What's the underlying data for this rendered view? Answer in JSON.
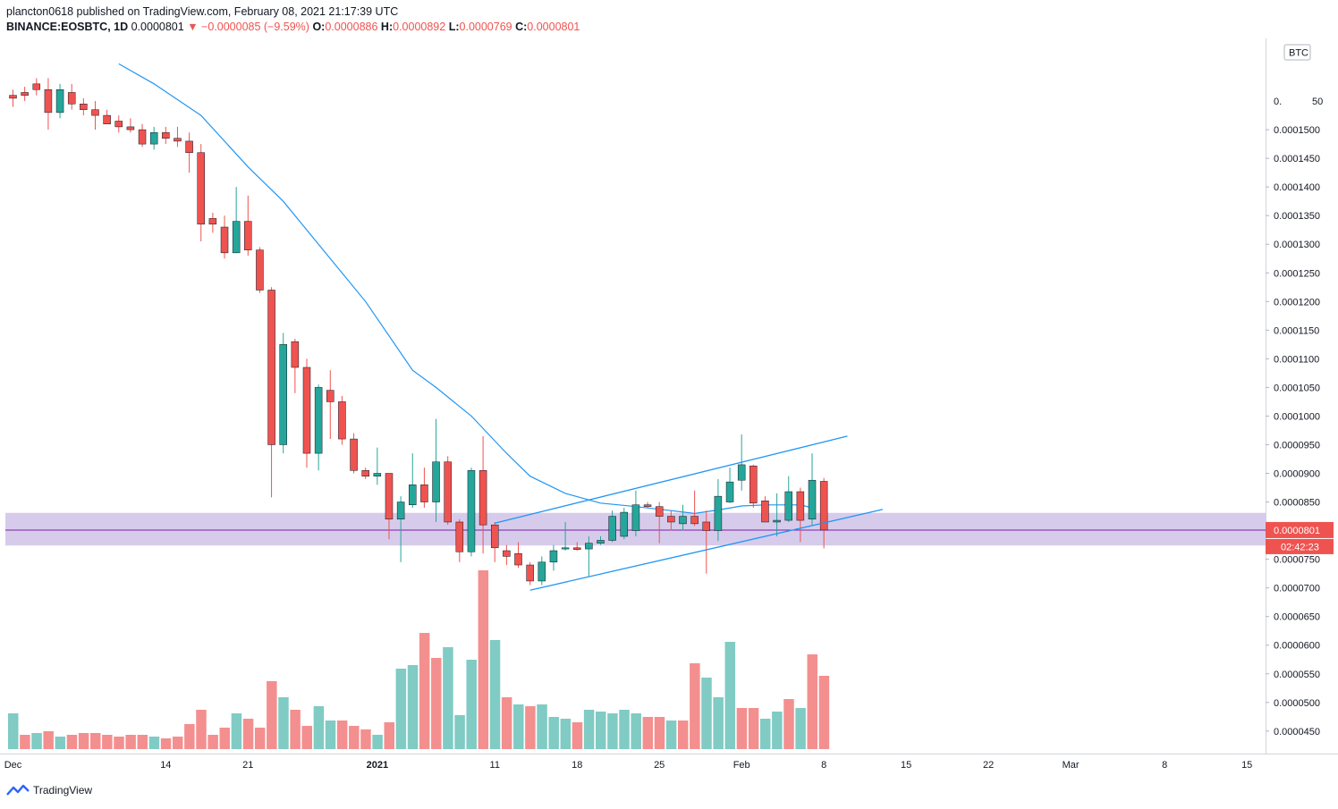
{
  "header": {
    "line1": "plancton0618 published on TradingView.com, February 08, 2021 21:17:39 UTC",
    "symbol": "BINANCE:EOSBTC, 1D",
    "last": "0.0000801",
    "change": "▼ −0.0000085 (−9.59%)",
    "o_label": "O:",
    "o": "0.0000886",
    "h_label": "H:",
    "h": "0.0000892",
    "l_label": "L:",
    "l": "0.0000769",
    "c_label": "C:",
    "c": "0.0000801"
  },
  "footer": {
    "brand": "TradingView",
    "brand_icon": "tradingview-logo-icon"
  },
  "colors": {
    "up": "#26a69a",
    "down": "#ef5350",
    "ma": "#2196f3",
    "zone": "#9575cd",
    "price_line": "#7b1fa2",
    "vol_up": "#80cbc4",
    "vol_down": "#f48f8f"
  },
  "chart_data": {
    "type": "candlestick",
    "currency_badge": "BTC",
    "price_label": "0.0000801",
    "countdown_label": "02:42:23",
    "y_ticks": [
      "0.0001500",
      "0.0001450",
      "0.0001400",
      "0.0001350",
      "0.0001300",
      "0.0001250",
      "0.0001200",
      "0.0001150",
      "0.0001100",
      "0.0001050",
      "0.0001000",
      "0.0000950",
      "0.0000900",
      "0.0000850",
      "0.0000750",
      "0.0000700",
      "0.0000650",
      "0.0000600",
      "0.0000550",
      "0.0000500",
      "0.0000450"
    ],
    "y_top_partial": "0.",
    "y_top_partial_end": "50",
    "ylim": [
      4.31e-05,
      0.0001586
    ],
    "x_ticks": [
      {
        "label": "Dec",
        "d": 0
      },
      {
        "label": "14",
        "d": 13
      },
      {
        "label": "21",
        "d": 20
      },
      {
        "label": "2021",
        "d": 31
      },
      {
        "label": "11",
        "d": 41
      },
      {
        "label": "18",
        "d": 48
      },
      {
        "label": "25",
        "d": 55
      },
      {
        "label": "Feb",
        "d": 62
      },
      {
        "label": "8",
        "d": 69
      },
      {
        "label": "15",
        "d": 76
      },
      {
        "label": "22",
        "d": 83
      },
      {
        "label": "Mar",
        "d": 90
      },
      {
        "label": "8",
        "d": 98
      },
      {
        "label": "15",
        "d": 105
      }
    ],
    "current_price": 8.01e-05,
    "support_zone": [
      7.74e-05,
      8.31e-05
    ],
    "channel": {
      "upper": [
        [
          41,
          8.13e-05
        ],
        [
          71,
          9.65e-05
        ]
      ],
      "lower": [
        [
          44,
          6.96e-05
        ],
        [
          74,
          8.37e-05
        ]
      ]
    },
    "ma": [
      [
        9,
        0.0001615
      ],
      [
        12,
        0.000158
      ],
      [
        16,
        0.0001525
      ],
      [
        20,
        0.0001435
      ],
      [
        23,
        0.0001375
      ],
      [
        26,
        0.00013
      ],
      [
        30,
        0.00012
      ],
      [
        34,
        0.000108
      ],
      [
        36,
        0.000105
      ],
      [
        39,
        0.0001
      ],
      [
        42,
        9.35e-05
      ],
      [
        44,
        8.95e-05
      ],
      [
        47,
        8.65e-05
      ],
      [
        50,
        8.48e-05
      ],
      [
        53,
        8.42e-05
      ],
      [
        56,
        8.35e-05
      ],
      [
        58,
        8.3e-05
      ],
      [
        60,
        8.36e-05
      ],
      [
        62,
        8.43e-05
      ],
      [
        64,
        8.45e-05
      ],
      [
        67,
        8.45e-05
      ],
      [
        68,
        8.4e-05
      ]
    ],
    "candles": [
      {
        "d": 0,
        "o": 0.000156,
        "h": 0.000157,
        "l": 0.000154,
        "c": 0.0001555
      },
      {
        "d": 1,
        "o": 0.0001565,
        "h": 0.0001575,
        "l": 0.000155,
        "c": 0.000156
      },
      {
        "d": 2,
        "o": 0.000158,
        "h": 0.000159,
        "l": 0.000156,
        "c": 0.000157
      },
      {
        "d": 3,
        "o": 0.000157,
        "h": 0.000159,
        "l": 0.00015,
        "c": 0.000153
      },
      {
        "d": 4,
        "o": 0.000153,
        "h": 0.000158,
        "l": 0.000152,
        "c": 0.000157
      },
      {
        "d": 5,
        "o": 0.0001565,
        "h": 0.000158,
        "l": 0.0001535,
        "c": 0.0001545
      },
      {
        "d": 6,
        "o": 0.0001545,
        "h": 0.0001555,
        "l": 0.0001525,
        "c": 0.0001535
      },
      {
        "d": 7,
        "o": 0.0001535,
        "h": 0.000155,
        "l": 0.00015,
        "c": 0.0001525
      },
      {
        "d": 8,
        "o": 0.0001525,
        "h": 0.0001535,
        "l": 0.000151,
        "c": 0.000151
      },
      {
        "d": 9,
        "o": 0.0001515,
        "h": 0.0001525,
        "l": 0.0001495,
        "c": 0.0001505
      },
      {
        "d": 10,
        "o": 0.0001505,
        "h": 0.000152,
        "l": 0.0001495,
        "c": 0.00015
      },
      {
        "d": 11,
        "o": 0.00015,
        "h": 0.000151,
        "l": 0.000147,
        "c": 0.0001475
      },
      {
        "d": 12,
        "o": 0.0001475,
        "h": 0.0001505,
        "l": 0.0001465,
        "c": 0.0001495
      },
      {
        "d": 13,
        "o": 0.0001495,
        "h": 0.0001505,
        "l": 0.0001475,
        "c": 0.0001485
      },
      {
        "d": 14,
        "o": 0.0001485,
        "h": 0.0001505,
        "l": 0.000147,
        "c": 0.000148
      },
      {
        "d": 15,
        "o": 0.000148,
        "h": 0.0001495,
        "l": 0.0001425,
        "c": 0.000146
      },
      {
        "d": 16,
        "o": 0.000146,
        "h": 0.0001475,
        "l": 0.0001305,
        "c": 0.0001335
      },
      {
        "d": 17,
        "o": 0.0001345,
        "h": 0.0001355,
        "l": 0.000132,
        "c": 0.0001335
      },
      {
        "d": 18,
        "o": 0.000133,
        "h": 0.000135,
        "l": 0.0001275,
        "c": 0.0001285
      },
      {
        "d": 19,
        "o": 0.0001285,
        "h": 0.00014,
        "l": 0.0001285,
        "c": 0.000134
      },
      {
        "d": 20,
        "o": 0.000134,
        "h": 0.0001385,
        "l": 0.000128,
        "c": 0.000129
      },
      {
        "d": 21,
        "o": 0.000129,
        "h": 0.0001295,
        "l": 0.0001215,
        "c": 0.000122
      },
      {
        "d": 22,
        "o": 0.000122,
        "h": 0.0001225,
        "l": 8.58e-05,
        "c": 9.5e-05
      },
      {
        "d": 23,
        "o": 9.5e-05,
        "h": 0.0001145,
        "l": 9.35e-05,
        "c": 0.0001125
      },
      {
        "d": 24,
        "o": 0.000113,
        "h": 0.0001135,
        "l": 0.000104,
        "c": 0.0001085
      },
      {
        "d": 25,
        "o": 0.0001085,
        "h": 0.00011,
        "l": 9.1e-05,
        "c": 9.35e-05
      },
      {
        "d": 26,
        "o": 9.35e-05,
        "h": 0.0001055,
        "l": 9.05e-05,
        "c": 0.000105
      },
      {
        "d": 27,
        "o": 0.0001045,
        "h": 0.000108,
        "l": 9.6e-05,
        "c": 0.0001025
      },
      {
        "d": 28,
        "o": 0.0001025,
        "h": 0.0001035,
        "l": 9.5e-05,
        "c": 9.6e-05
      },
      {
        "d": 29,
        "o": 9.6e-05,
        "h": 9.7e-05,
        "l": 9e-05,
        "c": 9.05e-05
      },
      {
        "d": 30,
        "o": 9.05e-05,
        "h": 9.1e-05,
        "l": 8.9e-05,
        "c": 8.95e-05
      },
      {
        "d": 31,
        "o": 8.95e-05,
        "h": 9.45e-05,
        "l": 8.8e-05,
        "c": 9e-05
      },
      {
        "d": 32,
        "o": 9e-05,
        "h": 9e-05,
        "l": 7.85e-05,
        "c": 8.2e-05
      },
      {
        "d": 33,
        "o": 8.2e-05,
        "h": 8.6e-05,
        "l": 7.45e-05,
        "c": 8.5e-05
      },
      {
        "d": 34,
        "o": 8.45e-05,
        "h": 9.35e-05,
        "l": 8.4e-05,
        "c": 8.8e-05
      },
      {
        "d": 35,
        "o": 8.8e-05,
        "h": 9.1e-05,
        "l": 8.4e-05,
        "c": 8.5e-05
      },
      {
        "d": 36,
        "o": 8.5e-05,
        "h": 9.95e-05,
        "l": 8.15e-05,
        "c": 9.2e-05
      },
      {
        "d": 37,
        "o": 9.2e-05,
        "h": 9.3e-05,
        "l": 8.1e-05,
        "c": 8.15e-05
      },
      {
        "d": 38,
        "o": 8.15e-05,
        "h": 8.2e-05,
        "l": 7.45e-05,
        "c": 7.63e-05
      },
      {
        "d": 39,
        "o": 7.63e-05,
        "h": 9.1e-05,
        "l": 7.55e-05,
        "c": 9.05e-05
      },
      {
        "d": 40,
        "o": 9.05e-05,
        "h": 9.65e-05,
        "l": 7.6e-05,
        "c": 8.1e-05
      },
      {
        "d": 41,
        "o": 8.1e-05,
        "h": 8.15e-05,
        "l": 7.45e-05,
        "c": 7.7e-05
      },
      {
        "d": 42,
        "o": 7.65e-05,
        "h": 7.75e-05,
        "l": 7.4e-05,
        "c": 7.55e-05
      },
      {
        "d": 43,
        "o": 7.6e-05,
        "h": 7.8e-05,
        "l": 7.35e-05,
        "c": 7.4e-05
      },
      {
        "d": 44,
        "o": 7.4e-05,
        "h": 7.45e-05,
        "l": 7.05e-05,
        "c": 7.12e-05
      },
      {
        "d": 45,
        "o": 7.12e-05,
        "h": 7.55e-05,
        "l": 7.05e-05,
        "c": 7.45e-05
      },
      {
        "d": 46,
        "o": 7.45e-05,
        "h": 7.75e-05,
        "l": 7.3e-05,
        "c": 7.65e-05
      },
      {
        "d": 47,
        "o": 7.68e-05,
        "h": 8.15e-05,
        "l": 7.65e-05,
        "c": 7.7e-05
      },
      {
        "d": 48,
        "o": 7.7e-05,
        "h": 7.8e-05,
        "l": 7.65e-05,
        "c": 7.67e-05
      },
      {
        "d": 49,
        "o": 7.68e-05,
        "h": 7.9e-05,
        "l": 7.2e-05,
        "c": 7.78e-05
      },
      {
        "d": 50,
        "o": 7.78e-05,
        "h": 7.9e-05,
        "l": 7.75e-05,
        "c": 7.83e-05
      },
      {
        "d": 51,
        "o": 7.83e-05,
        "h": 8.35e-05,
        "l": 7.8e-05,
        "c": 8.25e-05
      },
      {
        "d": 52,
        "o": 7.9e-05,
        "h": 8.4e-05,
        "l": 7.85e-05,
        "c": 8.32e-05
      },
      {
        "d": 53,
        "o": 8e-05,
        "h": 8.7e-05,
        "l": 7.9e-05,
        "c": 8.45e-05
      },
      {
        "d": 54,
        "o": 8.45e-05,
        "h": 8.5e-05,
        "l": 8.4e-05,
        "c": 8.42e-05
      },
      {
        "d": 55,
        "o": 8.42e-05,
        "h": 8.5e-05,
        "l": 7.78e-05,
        "c": 8.25e-05
      },
      {
        "d": 56,
        "o": 8.25e-05,
        "h": 8.35e-05,
        "l": 8e-05,
        "c": 8.15e-05
      },
      {
        "d": 57,
        "o": 8.12e-05,
        "h": 8.45e-05,
        "l": 8e-05,
        "c": 8.25e-05
      },
      {
        "d": 58,
        "o": 8.25e-05,
        "h": 8.7e-05,
        "l": 8.08e-05,
        "c": 8.12e-05
      },
      {
        "d": 59,
        "o": 8.15e-05,
        "h": 8.35e-05,
        "l": 7.25e-05,
        "c": 8e-05
      },
      {
        "d": 60,
        "o": 8e-05,
        "h": 8.9e-05,
        "l": 7.82e-05,
        "c": 8.6e-05
      },
      {
        "d": 61,
        "o": 8.5e-05,
        "h": 9.1e-05,
        "l": 8.48e-05,
        "c": 8.85e-05
      },
      {
        "d": 62,
        "o": 8.88e-05,
        "h": 9.68e-05,
        "l": 8.7e-05,
        "c": 9.15e-05
      },
      {
        "d": 63,
        "o": 9.13e-05,
        "h": 9.15e-05,
        "l": 8.4e-05,
        "c": 8.48e-05
      },
      {
        "d": 64,
        "o": 8.52e-05,
        "h": 8.6e-05,
        "l": 8.15e-05,
        "c": 8.15e-05
      },
      {
        "d": 65,
        "o": 8.15e-05,
        "h": 8.65e-05,
        "l": 7.9e-05,
        "c": 8.18e-05
      },
      {
        "d": 66,
        "o": 8.18e-05,
        "h": 8.95e-05,
        "l": 8.15e-05,
        "c": 8.68e-05
      },
      {
        "d": 67,
        "o": 8.68e-05,
        "h": 8.75e-05,
        "l": 7.8e-05,
        "c": 8.18e-05
      },
      {
        "d": 68,
        "o": 8.2e-05,
        "h": 9.35e-05,
        "l": 8.1e-05,
        "c": 8.88e-05
      },
      {
        "d": 69,
        "o": 8.86e-05,
        "h": 8.92e-05,
        "l": 7.69e-05,
        "c": 8.01e-05
      }
    ],
    "volume_max": 100,
    "volume": [
      20,
      8,
      9,
      10,
      7,
      8,
      9,
      9,
      8,
      7,
      8,
      8,
      7,
      6,
      7,
      14,
      22,
      8,
      12,
      20,
      17,
      12,
      38,
      29,
      22,
      13,
      24,
      16,
      16,
      13,
      11,
      8,
      15,
      45,
      47,
      65,
      51,
      57,
      19,
      50,
      100,
      61,
      29,
      25,
      24,
      25,
      18,
      17,
      15,
      22,
      21,
      20,
      22,
      20,
      18,
      18,
      16,
      16,
      48,
      40,
      29,
      60,
      23,
      23,
      17,
      21,
      28,
      23,
      53,
      41
    ],
    "volume_up": [
      true,
      false,
      true,
      false,
      true,
      false,
      false,
      false,
      false,
      false,
      false,
      false,
      true,
      false,
      false,
      false,
      false,
      false,
      false,
      true,
      false,
      false,
      false,
      true,
      false,
      false,
      true,
      true,
      false,
      false,
      false,
      true,
      false,
      true,
      true,
      false,
      false,
      true,
      true,
      true,
      false,
      true,
      false,
      true,
      false,
      true,
      true,
      true,
      false,
      true,
      true,
      true,
      true,
      true,
      false,
      false,
      true,
      false,
      false,
      true,
      true,
      true,
      false,
      false,
      true,
      true,
      false,
      true,
      false,
      false
    ]
  }
}
